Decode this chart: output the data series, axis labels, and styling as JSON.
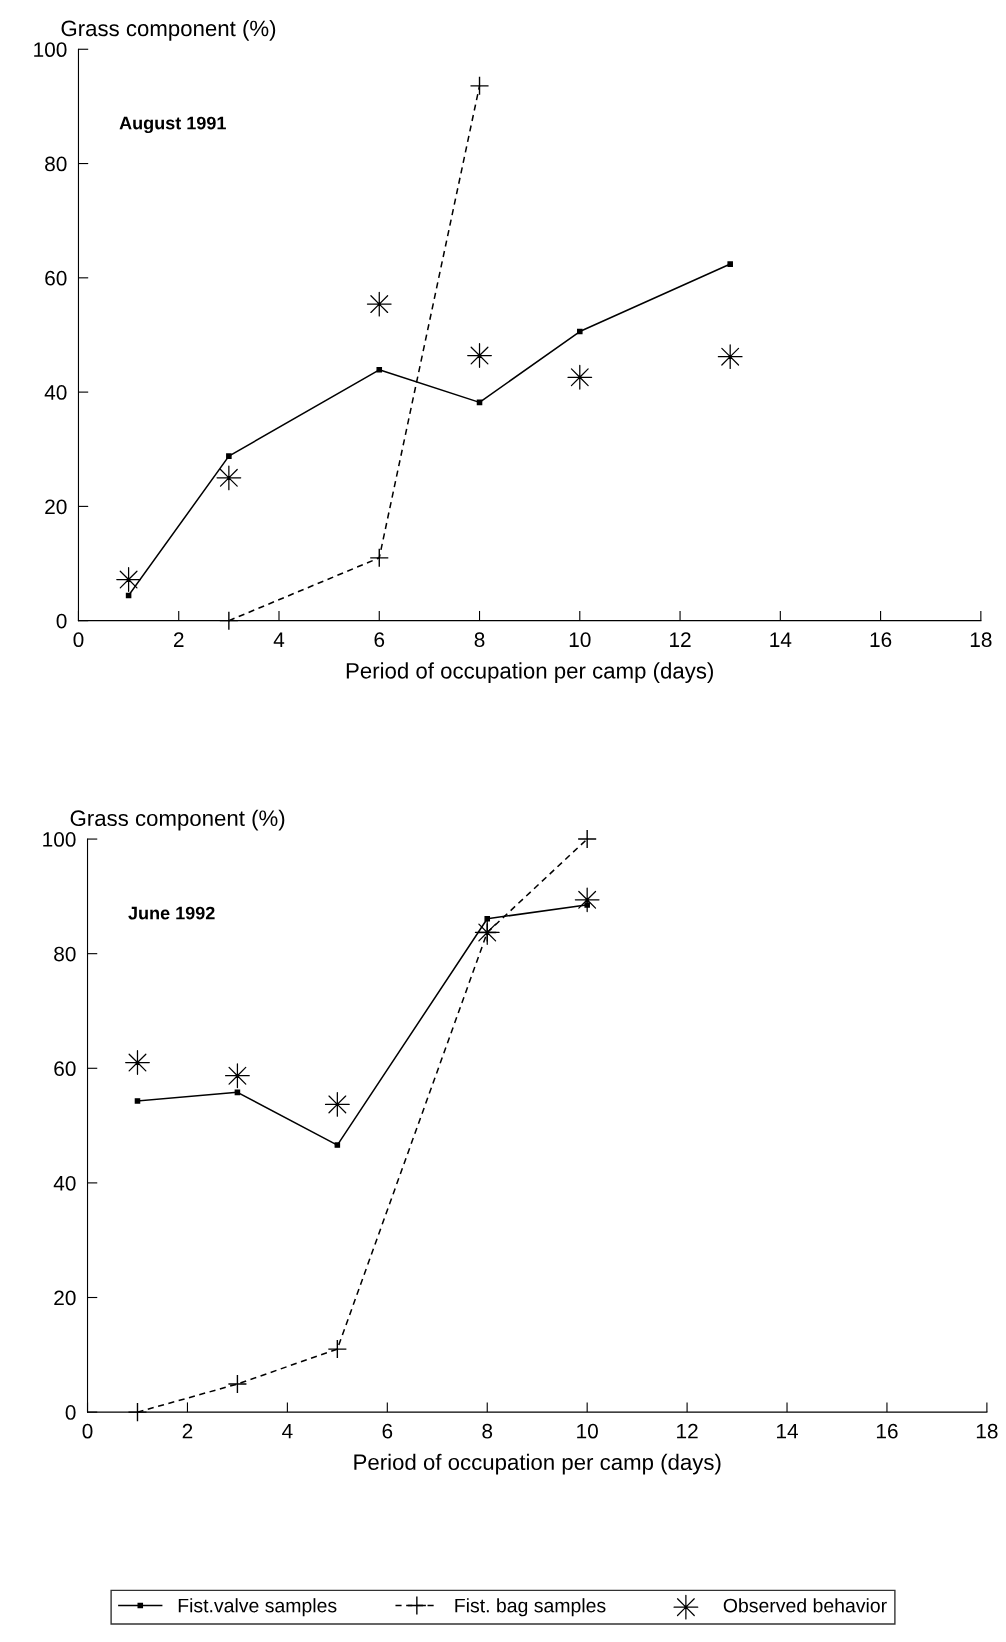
{
  "chart_data": [
    {
      "type": "line",
      "ylabel": "Grass component (%)",
      "xlabel": "Period of occupation per camp (days)",
      "annotations": [
        "August 1991"
      ],
      "xlim": [
        0,
        18
      ],
      "xticks": [
        0,
        2,
        4,
        6,
        8,
        10,
        12,
        14,
        16,
        18
      ],
      "ylim": [
        0,
        100
      ],
      "yticks": [
        0,
        20,
        40,
        60,
        80,
        100
      ],
      "grid": false,
      "legend": "bottom",
      "series": [
        {
          "name": "Fist.valve samples",
          "color": "#000000",
          "marker": "square",
          "line_style": "solid",
          "x": [
            1,
            3,
            6,
            8,
            10,
            13
          ],
          "values": [
            4.4,
            28.8,
            43.9,
            38.2,
            50.6,
            62.4
          ]
        },
        {
          "name": "Fist. bag samples",
          "color": "#000000",
          "marker": "cross",
          "line_style": "dashed",
          "x": [
            3,
            6,
            8
          ],
          "values": [
            0,
            11,
            93.6
          ]
        },
        {
          "name": "Observed behavior",
          "type": "scatter",
          "color": "#000000",
          "marker": "star",
          "x": [
            1,
            3,
            6,
            8,
            10,
            13
          ],
          "values": [
            7.2,
            25,
            55.4,
            46.4,
            42.6,
            46.2
          ]
        }
      ]
    },
    {
      "type": "line",
      "ylabel": "Grass component (%)",
      "xlabel": "Period of occupation per camp (days)",
      "annotations": [
        "June 1992"
      ],
      "xlim": [
        0,
        18
      ],
      "xticks": [
        0,
        2,
        4,
        6,
        8,
        10,
        12,
        14,
        16,
        18
      ],
      "ylim": [
        0,
        100
      ],
      "yticks": [
        0,
        20,
        40,
        60,
        80,
        100
      ],
      "grid": false,
      "legend": "bottom",
      "series": [
        {
          "name": "Fist.valve samples",
          "color": "#000000",
          "marker": "square",
          "line_style": "solid",
          "x": [
            1,
            3,
            5,
            8,
            10
          ],
          "values": [
            54.3,
            55.8,
            46.6,
            86.1,
            88.5
          ]
        },
        {
          "name": "Fist. bag samples",
          "color": "#000000",
          "marker": "cross",
          "line_style": "dashed",
          "x": [
            1,
            3,
            5,
            8,
            10
          ],
          "values": [
            0,
            4.9,
            11,
            83.7,
            100
          ]
        },
        {
          "name": "Observed behavior",
          "type": "scatter",
          "color": "#000000",
          "marker": "star",
          "x": [
            1,
            3,
            5,
            8,
            10
          ],
          "values": [
            61,
            58.7,
            53.7,
            83.7,
            89.4
          ]
        }
      ]
    }
  ]
}
